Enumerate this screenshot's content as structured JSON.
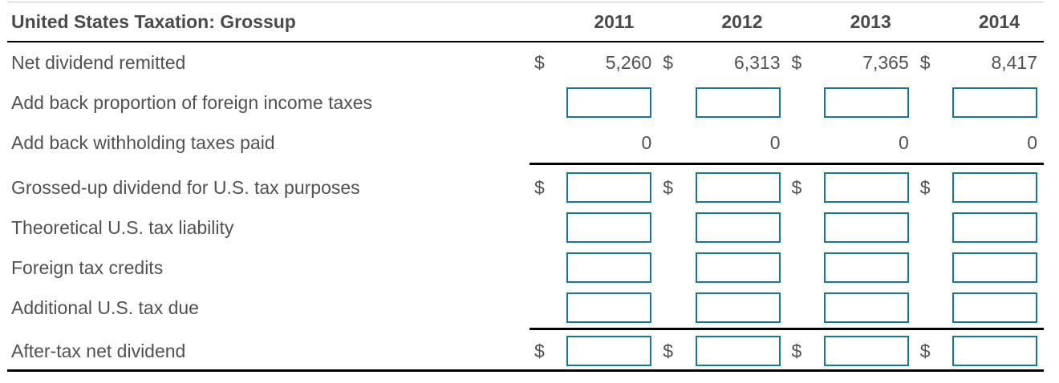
{
  "table": {
    "title": "United States Taxation: Grossup",
    "years": [
      "2011",
      "2012",
      "2013",
      "2014"
    ],
    "currency_symbol": "$",
    "rows": [
      {
        "label": "Net dividend remitted",
        "type": "values",
        "dollar": true,
        "rule_above": false,
        "values": [
          "5,260",
          "6,313",
          "7,365",
          "8,417"
        ]
      },
      {
        "label": "Add back proportion of foreign income taxes",
        "type": "inputs",
        "dollar": false,
        "rule_above": false
      },
      {
        "label": "Add back withholding taxes paid",
        "type": "values",
        "dollar": false,
        "rule_above": false,
        "values": [
          "0",
          "0",
          "0",
          "0"
        ]
      },
      {
        "label": "Grossed-up dividend for U.S. tax purposes",
        "type": "inputs",
        "dollar": true,
        "rule_above": true
      },
      {
        "label": "Theoretical U.S. tax liability",
        "type": "inputs",
        "dollar": false,
        "rule_above": false
      },
      {
        "label": "Foreign tax credits",
        "type": "inputs",
        "dollar": false,
        "rule_above": false
      },
      {
        "label": "Additional U.S. tax due",
        "type": "inputs",
        "dollar": false,
        "rule_above": false
      },
      {
        "label": "After-tax net dividend",
        "type": "inputs",
        "dollar": true,
        "rule_above": true
      }
    ],
    "input_value": "",
    "input_placeholder": "",
    "colors": {
      "input_border": "#16789b",
      "text": "#515151",
      "heading_text": "#4a4a4a",
      "rule": "#000000",
      "top_rule": "#c9c9c9"
    }
  }
}
